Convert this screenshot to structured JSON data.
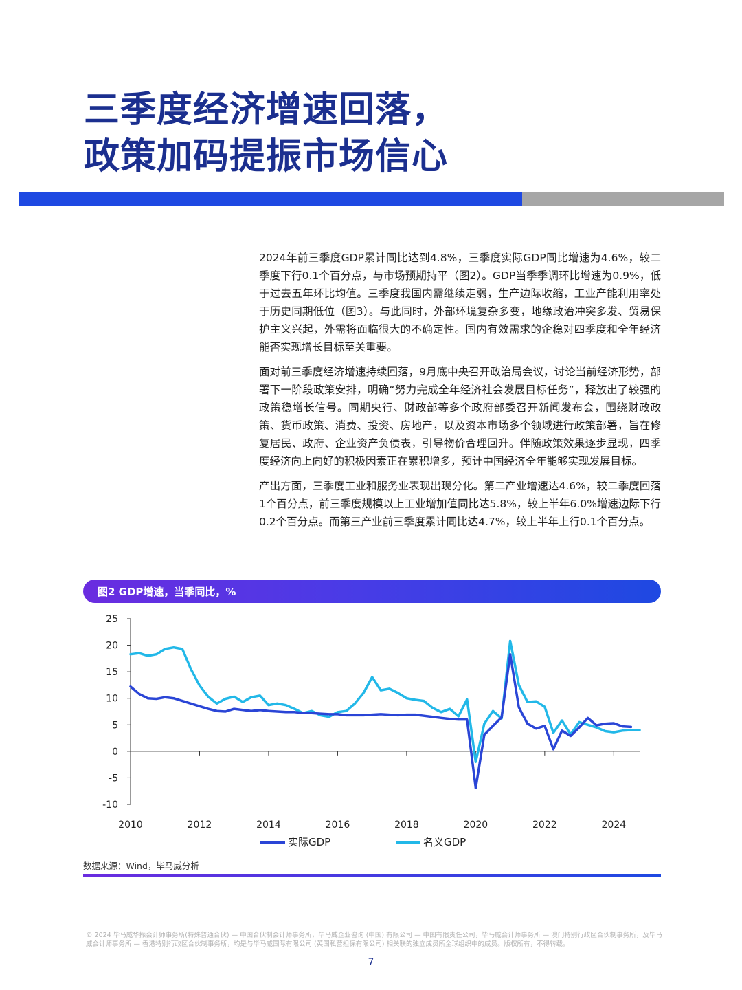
{
  "title": {
    "line1": "三季度经济增速回落，",
    "line2": "政策加码提振市场信心"
  },
  "paragraphs": [
    "2024年前三季度GDP累计同比达到4.8%，三季度实际GDP同比增速为4.6%，较二季度下行0.1个百分点，与市场预期持平（图2）。GDP当季季调环比增速为0.9%，低于过去五年环比均值。三季度我国内需继续走弱，生产边际收缩，工业产能利用率处于历史同期低位（图3）。与此同时，外部环境复杂多变，地缘政治冲突多发、贸易保护主义兴起，外需将面临很大的不确定性。国内有效需求的企稳对四季度和全年经济能否实现增长目标至关重要。",
    "面对前三季度经济增速持续回落，9月底中央召开政治局会议，讨论当前经济形势，部署下一阶段政策安排，明确“努力完成全年经济社会发展目标任务”，释放出了较强的政策稳增长信号。同期央行、财政部等多个政府部委召开新闻发布会，围绕财政政策、货币政策、消费、投资、房地产，以及资本市场多个领域进行政策部署，旨在修复居民、政府、企业资产负债表，引导物价合理回升。伴随政策效果逐步显现，四季度经济向上向好的积极因素正在累积增多，预计中国经济全年能够实现发展目标。",
    "产出方面，三季度工业和服务业表现出现分化。第二产业增速达4.6%，较二季度回落1个百分点，前三季度规模以上工业增加值同比达5.8%，较上半年6.0%增速边际下行0.2个百分点。而第三产业前三季度累计同比达4.7%，较上半年上行0.1个百分点。"
  ],
  "figure": {
    "caption": "图2 GDP增速，当季同比，%",
    "source": "数据来源：Wind，毕马威分析"
  },
  "chart_data": {
    "type": "line",
    "title": "",
    "xlabel": "",
    "ylabel": "",
    "x_ticks": [
      "2010",
      "2012",
      "2014",
      "2016",
      "2018",
      "2020",
      "2022",
      "2024"
    ],
    "y_ticks": [
      "25",
      "20",
      "15",
      "10",
      "5",
      "0",
      "-5",
      "-10"
    ],
    "xlim": [
      2010.0,
      2024.75
    ],
    "ylim": [
      -10,
      25
    ],
    "grid": false,
    "legend_position": "bottom",
    "series": [
      {
        "name": "实际GDP",
        "color": "#2a45d6",
        "points": [
          [
            2010.0,
            12.2
          ],
          [
            2010.25,
            10.8
          ],
          [
            2010.5,
            10.0
          ],
          [
            2010.75,
            9.9
          ],
          [
            2011.0,
            10.2
          ],
          [
            2011.25,
            10.0
          ],
          [
            2011.5,
            9.5
          ],
          [
            2011.75,
            9.0
          ],
          [
            2012.0,
            8.5
          ],
          [
            2012.25,
            8.0
          ],
          [
            2012.5,
            7.6
          ],
          [
            2012.75,
            7.5
          ],
          [
            2013.0,
            8.0
          ],
          [
            2013.25,
            7.8
          ],
          [
            2013.5,
            7.6
          ],
          [
            2013.75,
            7.8
          ],
          [
            2014.0,
            7.6
          ],
          [
            2014.25,
            7.5
          ],
          [
            2014.5,
            7.4
          ],
          [
            2014.75,
            7.4
          ],
          [
            2015.0,
            7.2
          ],
          [
            2015.25,
            7.2
          ],
          [
            2015.5,
            7.1
          ],
          [
            2015.75,
            7.0
          ],
          [
            2016.0,
            7.0
          ],
          [
            2016.25,
            6.8
          ],
          [
            2016.5,
            6.8
          ],
          [
            2016.75,
            6.8
          ],
          [
            2017.0,
            6.9
          ],
          [
            2017.25,
            7.0
          ],
          [
            2017.5,
            6.9
          ],
          [
            2017.75,
            6.8
          ],
          [
            2018.0,
            6.9
          ],
          [
            2018.25,
            6.9
          ],
          [
            2018.5,
            6.7
          ],
          [
            2018.75,
            6.5
          ],
          [
            2019.0,
            6.3
          ],
          [
            2019.25,
            6.1
          ],
          [
            2019.5,
            6.0
          ],
          [
            2019.75,
            6.0
          ],
          [
            2020.0,
            -6.9
          ],
          [
            2020.25,
            3.1
          ],
          [
            2020.5,
            4.8
          ],
          [
            2020.75,
            6.4
          ],
          [
            2021.0,
            18.3
          ],
          [
            2021.25,
            8.3
          ],
          [
            2021.5,
            5.2
          ],
          [
            2021.75,
            4.3
          ],
          [
            2022.0,
            4.8
          ],
          [
            2022.25,
            0.4
          ],
          [
            2022.5,
            3.9
          ],
          [
            2022.75,
            2.9
          ],
          [
            2023.0,
            4.5
          ],
          [
            2023.25,
            6.3
          ],
          [
            2023.5,
            4.9
          ],
          [
            2023.75,
            5.2
          ],
          [
            2024.0,
            5.3
          ],
          [
            2024.25,
            4.7
          ],
          [
            2024.5,
            4.6
          ]
        ]
      },
      {
        "name": "名义GDP",
        "color": "#22b8e8",
        "points": [
          [
            2010.0,
            18.3
          ],
          [
            2010.25,
            18.5
          ],
          [
            2010.5,
            18.0
          ],
          [
            2010.75,
            18.3
          ],
          [
            2011.0,
            19.3
          ],
          [
            2011.25,
            19.6
          ],
          [
            2011.5,
            19.3
          ],
          [
            2011.75,
            15.5
          ],
          [
            2012.0,
            12.4
          ],
          [
            2012.25,
            10.3
          ],
          [
            2012.5,
            9.0
          ],
          [
            2012.75,
            9.9
          ],
          [
            2013.0,
            10.3
          ],
          [
            2013.25,
            9.3
          ],
          [
            2013.5,
            10.2
          ],
          [
            2013.75,
            10.5
          ],
          [
            2014.0,
            8.7
          ],
          [
            2014.25,
            9.0
          ],
          [
            2014.5,
            8.7
          ],
          [
            2014.75,
            8.0
          ],
          [
            2015.0,
            7.2
          ],
          [
            2015.25,
            7.6
          ],
          [
            2015.5,
            6.8
          ],
          [
            2015.75,
            6.5
          ],
          [
            2016.0,
            7.4
          ],
          [
            2016.25,
            7.6
          ],
          [
            2016.5,
            9.0
          ],
          [
            2016.75,
            11.0
          ],
          [
            2017.0,
            14.0
          ],
          [
            2017.25,
            11.5
          ],
          [
            2017.5,
            11.8
          ],
          [
            2017.75,
            11.0
          ],
          [
            2018.0,
            10.0
          ],
          [
            2018.25,
            9.7
          ],
          [
            2018.5,
            9.5
          ],
          [
            2018.75,
            8.2
          ],
          [
            2019.0,
            7.4
          ],
          [
            2019.25,
            8.0
          ],
          [
            2019.5,
            6.6
          ],
          [
            2019.75,
            9.8
          ],
          [
            2020.0,
            -2.0
          ],
          [
            2020.25,
            5.2
          ],
          [
            2020.5,
            7.6
          ],
          [
            2020.75,
            6.2
          ],
          [
            2021.0,
            20.8
          ],
          [
            2021.25,
            12.5
          ],
          [
            2021.5,
            9.3
          ],
          [
            2021.75,
            9.4
          ],
          [
            2022.0,
            8.4
          ],
          [
            2022.25,
            3.5
          ],
          [
            2022.5,
            5.8
          ],
          [
            2022.75,
            3.2
          ],
          [
            2023.0,
            5.5
          ],
          [
            2023.25,
            5.0
          ],
          [
            2023.5,
            4.5
          ],
          [
            2023.75,
            3.8
          ],
          [
            2024.0,
            3.6
          ],
          [
            2024.25,
            3.9
          ],
          [
            2024.5,
            4.0
          ],
          [
            2024.75,
            4.0
          ]
        ]
      }
    ]
  },
  "footer": {
    "legal": "© 2024 毕马威华振会计师事务所(特殊普通合伙) — 中国合伙制会计师事务所，毕马威企业咨询 (中国) 有限公司 — 中国有限责任公司，毕马威会计师事务所 — 澳门特别行政区合伙制事务所，及毕马威会计师事务所 — 香港特别行政区合伙制事务所，均是与毕马威国际有限公司 (英国私营担保有限公司) 相关联的独立成员所全球组织中的成员。版权所有，不得转载。",
    "page_number": "7"
  }
}
